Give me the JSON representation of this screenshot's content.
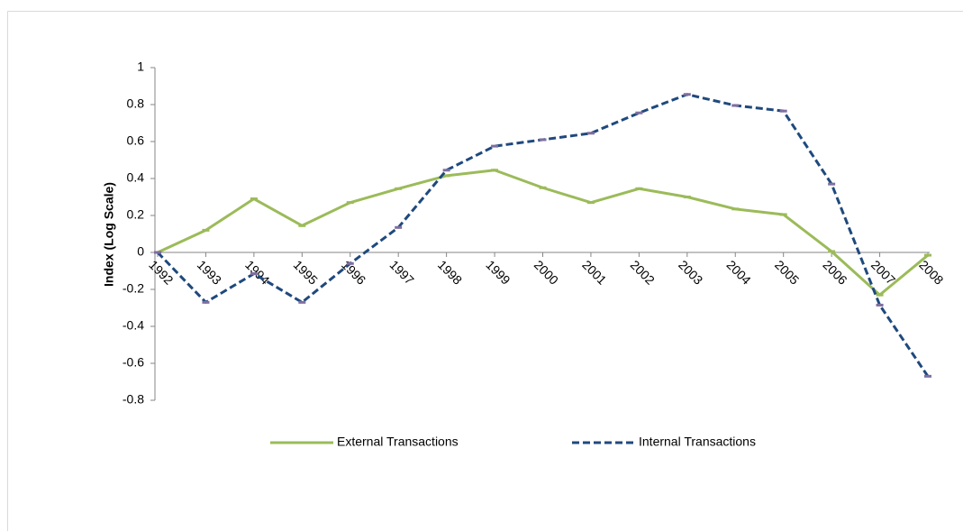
{
  "chart_data": {
    "type": "line",
    "y_label": "Index (Log Scale)",
    "categories": [
      "1992",
      "1993",
      "1994",
      "1995",
      "1996",
      "1997",
      "1998",
      "1999",
      "2000",
      "2001",
      "2002",
      "2003",
      "2004",
      "2005",
      "2006",
      "2007",
      "2008"
    ],
    "series": [
      {
        "name": "External Transactions",
        "color": "#9bbb59",
        "dash": "solid",
        "values": [
          0,
          0.12,
          0.29,
          0.145,
          0.27,
          0.345,
          0.415,
          0.445,
          0.35,
          0.27,
          0.345,
          0.3,
          0.235,
          0.205,
          0.005,
          -0.23,
          -0.015
        ]
      },
      {
        "name": "Internal Transactions",
        "color": "#1f497d",
        "dash": "dashed",
        "values": [
          0,
          -0.27,
          -0.115,
          -0.27,
          -0.06,
          0.135,
          0.445,
          0.575,
          0.61,
          0.645,
          0.755,
          0.855,
          0.795,
          0.765,
          0.37,
          -0.285,
          -0.67
        ]
      }
    ],
    "ylim": [
      -0.8,
      1
    ],
    "yticks": [
      -0.8,
      -0.6,
      -0.4,
      -0.2,
      0,
      0.2,
      0.4,
      0.6,
      0.8,
      1
    ],
    "grid": false,
    "legend": "bottom"
  }
}
